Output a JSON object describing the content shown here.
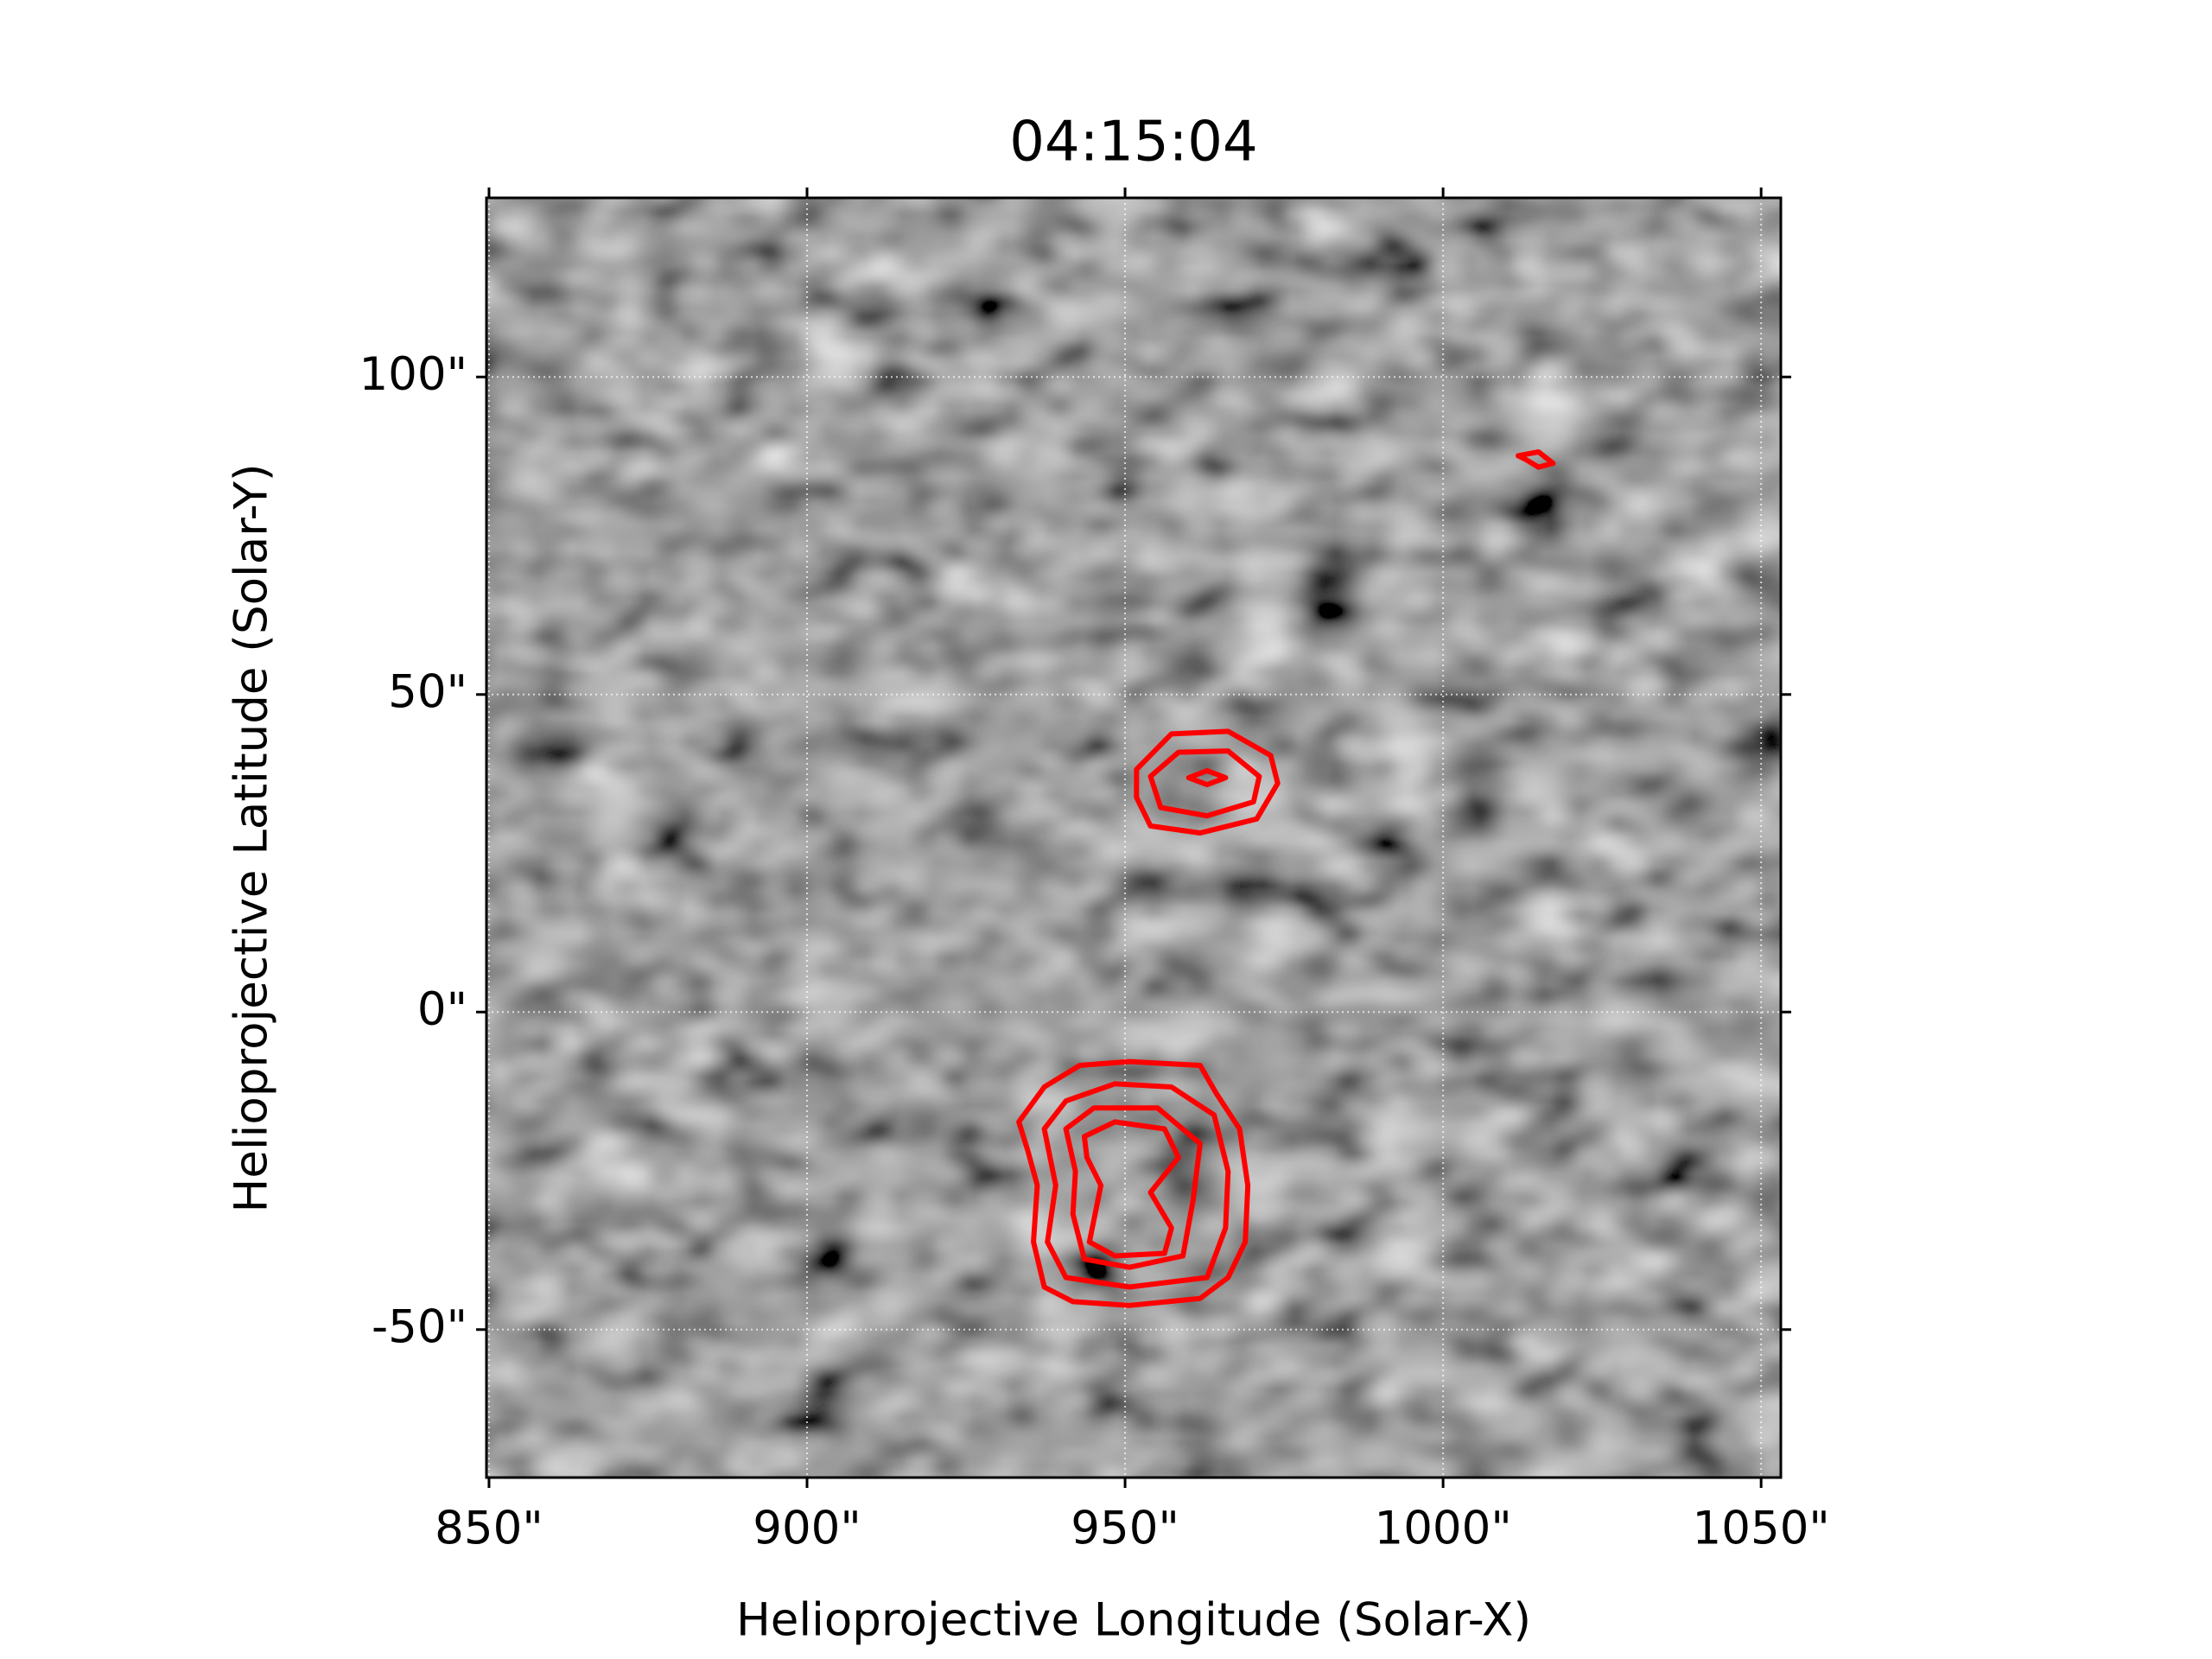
{
  "chart_data": {
    "type": "image-contour",
    "title": "04:15:04",
    "x_label": "Helioprojective Longitude (Solar-X)",
    "y_label": "Helioprojective Latitude (Solar-Y)",
    "xlim": [
      849.6,
      1053.1
    ],
    "ylim": [
      -73.3,
      128.2
    ],
    "xticks": [
      {
        "value": 850,
        "label": "850\""
      },
      {
        "value": 900,
        "label": "900\""
      },
      {
        "value": 950,
        "label": "950\""
      },
      {
        "value": 1000,
        "label": "1000\""
      },
      {
        "value": 1050,
        "label": "1050\""
      }
    ],
    "yticks": [
      {
        "value": -50,
        "label": "-50\""
      },
      {
        "value": 0,
        "label": "0\""
      },
      {
        "value": 50,
        "label": "50\""
      },
      {
        "value": 100,
        "label": "100\""
      }
    ],
    "grid": true,
    "contour_color": "#ff0000",
    "contours": [
      {
        "x": [
          933.3,
          937.3,
          942.9,
          950.7,
          961.8,
          964.4,
          968.0,
          969.3,
          968.9,
          966.2,
          961.8,
          950.7,
          941.8,
          937.3,
          935.6,
          936.2,
          934.7
        ],
        "y": [
          -17.3,
          -11.8,
          -8.4,
          -7.8,
          -8.4,
          -12.9,
          -18.4,
          -27.3,
          -36.2,
          -41.8,
          -45.1,
          -46.2,
          -45.6,
          -43.3,
          -36.2,
          -27.3,
          -21.8
        ]
      },
      {
        "x": [
          937.3,
          940.7,
          948.4,
          957.3,
          964.0,
          966.2,
          965.8,
          962.9,
          950.7,
          940.7,
          937.8,
          939.1
        ],
        "y": [
          -18.4,
          -14.0,
          -11.3,
          -11.8,
          -16.2,
          -25.1,
          -34.0,
          -41.8,
          -43.3,
          -41.8,
          -36.2,
          -27.3
        ]
      },
      {
        "x": [
          940.7,
          945.1,
          955.1,
          961.8,
          960.7,
          959.1,
          950.7,
          943.6,
          941.8,
          942.2
        ],
        "y": [
          -18.4,
          -15.1,
          -15.1,
          -20.7,
          -29.6,
          -38.4,
          -40.2,
          -38.9,
          -31.8,
          -25.1
        ]
      },
      {
        "x": [
          943.6,
          948.4,
          956.2,
          958.4,
          954.0,
          957.3,
          956.2,
          948.4,
          944.4,
          946.2,
          944.0
        ],
        "y": [
          -19.6,
          -17.3,
          -18.4,
          -22.9,
          -28.4,
          -34.0,
          -38.0,
          -38.4,
          -36.2,
          -27.3,
          -22.9
        ]
      },
      {
        "x": [
          951.8,
          957.3,
          966.2,
          972.9,
          974.0,
          970.7,
          961.8,
          954.0,
          951.8
        ],
        "y": [
          38.2,
          43.8,
          44.2,
          40.4,
          36.0,
          30.4,
          28.2,
          29.3,
          33.8
        ]
      },
      {
        "x": [
          954.0,
          958.4,
          966.2,
          971.1,
          970.2,
          962.9,
          955.6
        ],
        "y": [
          37.1,
          40.9,
          41.1,
          37.1,
          33.1,
          30.9,
          32.2
        ]
      },
      {
        "x": [
          960.0,
          962.9,
          965.8,
          962.9
        ],
        "y": [
          36.9,
          38.0,
          36.9,
          35.8
        ]
      },
      {
        "x": [
          1011.8,
          1015.0,
          1017.3,
          1015.0,
          1013.0
        ],
        "y": [
          87.6,
          88.2,
          86.4,
          85.8,
          87.0
        ]
      }
    ]
  }
}
